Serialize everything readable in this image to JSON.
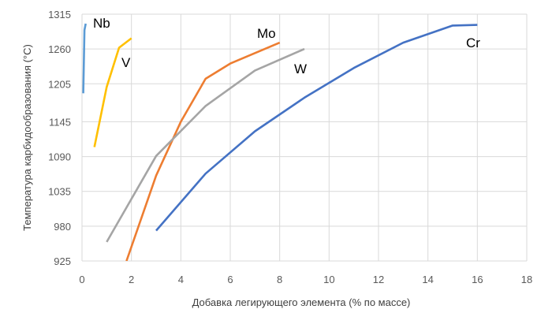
{
  "chart_data": {
    "type": "line",
    "title": "",
    "xlabel": "Добавка легирующего элемента (% по массе)",
    "ylabel": "Температура карбидообразования (°C)",
    "xlim": [
      0,
      18
    ],
    "ylim": [
      925,
      1315
    ],
    "x_ticks": [
      0,
      2,
      4,
      6,
      8,
      10,
      12,
      14,
      16,
      18
    ],
    "x_tick_labels": [
      "0",
      "2",
      "4",
      "6",
      "8",
      "10",
      "12",
      "14",
      "16",
      "18"
    ],
    "y_ticks": [
      925,
      980,
      1035,
      1090,
      1145,
      1205,
      1260,
      1315
    ],
    "y_tick_labels": [
      "925",
      "980",
      "1035",
      "1090",
      "1145",
      "1205",
      "1260",
      "1315"
    ],
    "grid": true,
    "series": [
      {
        "name": "Nb",
        "color": "#5b9bd5",
        "x": [
          0.05,
          0.1,
          0.15
        ],
        "y": [
          1190,
          1290,
          1300
        ]
      },
      {
        "name": "V",
        "color": "#ffc000",
        "x": [
          0.5,
          1,
          1.5,
          2
        ],
        "y": [
          1105,
          1200,
          1262,
          1277
        ]
      },
      {
        "name": "Mo",
        "color": "#ed7d31",
        "x": [
          1.8,
          3,
          4,
          5,
          6,
          8
        ],
        "y": [
          925,
          1060,
          1145,
          1213,
          1237,
          1270
        ]
      },
      {
        "name": "W",
        "color": "#a5a5a5",
        "x": [
          1,
          3,
          5,
          7,
          9
        ],
        "y": [
          955,
          1091,
          1170,
          1226,
          1260
        ]
      },
      {
        "name": "Cr",
        "color": "#4472c4",
        "x": [
          3,
          5,
          7,
          9,
          11,
          13,
          15,
          16
        ],
        "y": [
          973,
          1063,
          1130,
          1183,
          1230,
          1270,
          1297,
          1298
        ]
      }
    ],
    "labels": [
      {
        "text": "Nb",
        "series": "Nb"
      },
      {
        "text": "V",
        "series": "V"
      },
      {
        "text": "Mo",
        "series": "Mo"
      },
      {
        "text": "W",
        "series": "W"
      },
      {
        "text": "Cr",
        "series": "Cr"
      }
    ]
  }
}
